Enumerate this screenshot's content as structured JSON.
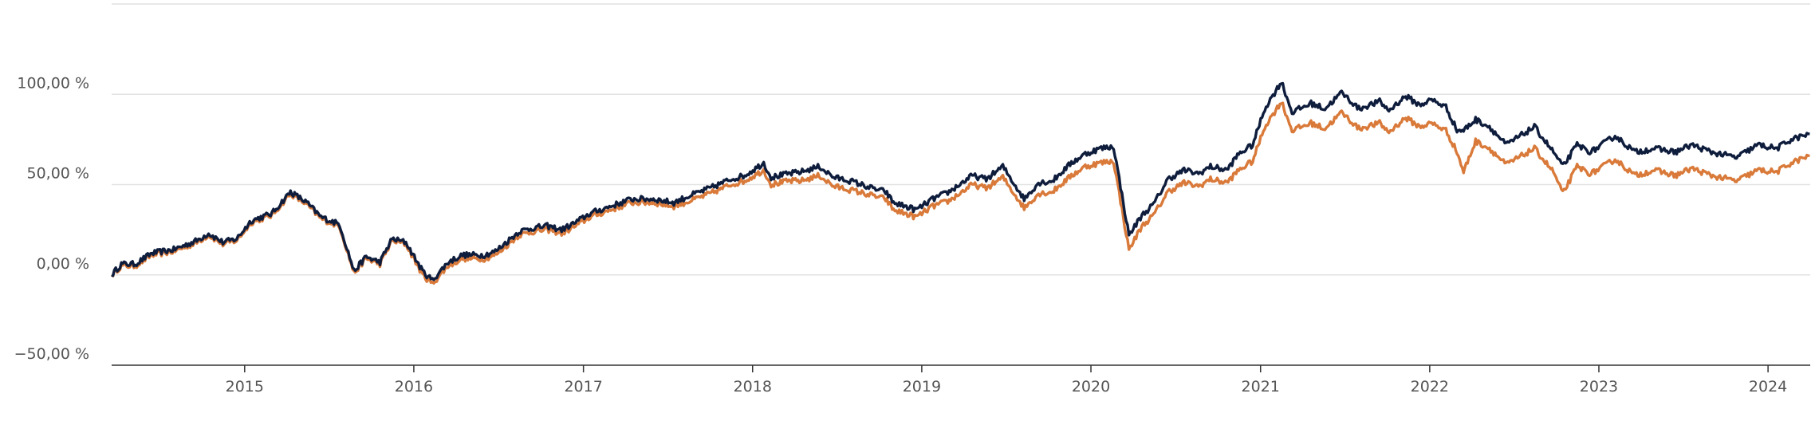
{
  "chart_data": {
    "type": "line",
    "title": "",
    "xlabel": "",
    "ylabel": "",
    "ylim": [
      -50,
      150
    ],
    "xlim": [
      "2014-03-20",
      "2024-04-01"
    ],
    "grid": true,
    "legend": "none",
    "y_ticks": [
      {
        "value": -50,
        "label": "−50,00 %"
      },
      {
        "value": 0,
        "label": "0,00 %"
      },
      {
        "value": 50,
        "label": "50,00 %"
      },
      {
        "value": 100,
        "label": "100,00 %"
      },
      {
        "value": 150,
        "label": ""
      }
    ],
    "x_ticks": [
      {
        "date": "2015-01-01",
        "label": "2015"
      },
      {
        "date": "2016-01-01",
        "label": "2016"
      },
      {
        "date": "2017-01-01",
        "label": "2017"
      },
      {
        "date": "2018-01-01",
        "label": "2018"
      },
      {
        "date": "2019-01-01",
        "label": "2019"
      },
      {
        "date": "2020-01-01",
        "label": "2020"
      },
      {
        "date": "2021-01-01",
        "label": "2021"
      },
      {
        "date": "2022-01-01",
        "label": "2022"
      },
      {
        "date": "2023-01-01",
        "label": "2023"
      },
      {
        "date": "2024-01-01",
        "label": "2024"
      }
    ],
    "series": [
      {
        "color": "#0f1d3d",
        "points": [
          [
            "2014-03-20",
            0
          ],
          [
            "2014-04-10",
            6
          ],
          [
            "2014-05-10",
            6
          ],
          [
            "2014-06-15",
            12
          ],
          [
            "2014-08-01",
            14
          ],
          [
            "2014-09-20",
            19
          ],
          [
            "2014-10-15",
            23
          ],
          [
            "2014-11-15",
            18
          ],
          [
            "2014-12-15",
            20
          ],
          [
            "2015-01-15",
            30
          ],
          [
            "2015-03-01",
            34
          ],
          [
            "2015-04-10",
            46
          ],
          [
            "2015-05-15",
            40
          ],
          [
            "2015-06-15",
            32
          ],
          [
            "2015-07-25",
            28
          ],
          [
            "2015-08-25",
            2
          ],
          [
            "2015-09-20",
            10
          ],
          [
            "2015-10-20",
            7
          ],
          [
            "2015-11-15",
            20
          ],
          [
            "2015-12-15",
            18
          ],
          [
            "2016-01-20",
            2
          ],
          [
            "2016-02-10",
            -3
          ],
          [
            "2016-03-15",
            7
          ],
          [
            "2016-04-15",
            11
          ],
          [
            "2016-06-01",
            11
          ],
          [
            "2016-06-25",
            13
          ],
          [
            "2016-08-15",
            24
          ],
          [
            "2016-09-15",
            26
          ],
          [
            "2016-10-15",
            27
          ],
          [
            "2016-11-15",
            25
          ],
          [
            "2016-12-15",
            29
          ],
          [
            "2017-01-15",
            34
          ],
          [
            "2017-03-01",
            38
          ],
          [
            "2017-04-15",
            42
          ],
          [
            "2017-06-01",
            42
          ],
          [
            "2017-07-15",
            40
          ],
          [
            "2017-08-20",
            44
          ],
          [
            "2017-10-01",
            48
          ],
          [
            "2017-11-15",
            53
          ],
          [
            "2017-12-15",
            55
          ],
          [
            "2018-01-25",
            62
          ],
          [
            "2018-02-10",
            54
          ],
          [
            "2018-03-20",
            56
          ],
          [
            "2018-04-15",
            57
          ],
          [
            "2018-05-25",
            60
          ],
          [
            "2018-06-25",
            54
          ],
          [
            "2018-08-01",
            52
          ],
          [
            "2018-09-15",
            48
          ],
          [
            "2018-10-15",
            46
          ],
          [
            "2018-11-01",
            40
          ],
          [
            "2018-12-20",
            36
          ],
          [
            "2019-01-25",
            42
          ],
          [
            "2019-03-01",
            46
          ],
          [
            "2019-04-20",
            55
          ],
          [
            "2019-05-20",
            53
          ],
          [
            "2019-06-25",
            60
          ],
          [
            "2019-08-10",
            42
          ],
          [
            "2019-09-10",
            51
          ],
          [
            "2019-10-10",
            52
          ],
          [
            "2019-11-20",
            62
          ],
          [
            "2019-12-20",
            67
          ],
          [
            "2020-01-20",
            70
          ],
          [
            "2020-02-19",
            71
          ],
          [
            "2020-03-23",
            22
          ],
          [
            "2020-04-20",
            33
          ],
          [
            "2020-05-15",
            39
          ],
          [
            "2020-06-15",
            53
          ],
          [
            "2020-07-20",
            58
          ],
          [
            "2020-08-20",
            56
          ],
          [
            "2020-09-15",
            60
          ],
          [
            "2020-10-20",
            58
          ],
          [
            "2020-11-15",
            67
          ],
          [
            "2020-12-15",
            72
          ],
          [
            "2021-01-10",
            92
          ],
          [
            "2021-02-15",
            107
          ],
          [
            "2021-03-10",
            90
          ],
          [
            "2021-04-20",
            95
          ],
          [
            "2021-05-20",
            92
          ],
          [
            "2021-06-25",
            101
          ],
          [
            "2021-08-01",
            92
          ],
          [
            "2021-09-15",
            96
          ],
          [
            "2021-10-05",
            91
          ],
          [
            "2021-11-10",
            99
          ],
          [
            "2021-12-10",
            94
          ],
          [
            "2022-01-05",
            97
          ],
          [
            "2022-02-05",
            93
          ],
          [
            "2022-03-01",
            80
          ],
          [
            "2022-03-15",
            80
          ],
          [
            "2022-04-10",
            86
          ],
          [
            "2022-05-10",
            82
          ],
          [
            "2022-06-15",
            72
          ],
          [
            "2022-08-15",
            82
          ],
          [
            "2022-09-25",
            68
          ],
          [
            "2022-10-15",
            60
          ],
          [
            "2022-11-15",
            72
          ],
          [
            "2022-12-15",
            68
          ],
          [
            "2023-02-05",
            77
          ],
          [
            "2023-03-20",
            68
          ],
          [
            "2023-05-01",
            70
          ],
          [
            "2023-06-15",
            68
          ],
          [
            "2023-07-20",
            72
          ],
          [
            "2023-09-01",
            68
          ],
          [
            "2023-10-25",
            65
          ],
          [
            "2023-12-10",
            72
          ],
          [
            "2024-01-20",
            70
          ],
          [
            "2024-02-20",
            75
          ],
          [
            "2024-03-31",
            78
          ]
        ]
      },
      {
        "color": "#d97a3a",
        "points": [
          [
            "2014-03-20",
            0
          ],
          [
            "2014-04-10",
            5
          ],
          [
            "2014-05-10",
            5
          ],
          [
            "2014-06-15",
            11
          ],
          [
            "2014-08-01",
            13
          ],
          [
            "2014-09-20",
            18
          ],
          [
            "2014-10-15",
            22
          ],
          [
            "2014-11-15",
            17
          ],
          [
            "2014-12-15",
            19
          ],
          [
            "2015-01-15",
            29
          ],
          [
            "2015-03-01",
            33
          ],
          [
            "2015-04-10",
            45
          ],
          [
            "2015-05-15",
            39
          ],
          [
            "2015-06-15",
            31
          ],
          [
            "2015-07-25",
            27
          ],
          [
            "2015-08-25",
            1
          ],
          [
            "2015-09-20",
            9
          ],
          [
            "2015-10-20",
            6
          ],
          [
            "2015-11-15",
            19
          ],
          [
            "2015-12-15",
            17
          ],
          [
            "2016-01-20",
            0
          ],
          [
            "2016-02-10",
            -5
          ],
          [
            "2016-03-15",
            5
          ],
          [
            "2016-04-15",
            9
          ],
          [
            "2016-06-01",
            9
          ],
          [
            "2016-06-25",
            11
          ],
          [
            "2016-08-15",
            22
          ],
          [
            "2016-09-15",
            24
          ],
          [
            "2016-10-15",
            25
          ],
          [
            "2016-11-15",
            23
          ],
          [
            "2016-12-15",
            27
          ],
          [
            "2017-01-15",
            32
          ],
          [
            "2017-03-01",
            36
          ],
          [
            "2017-04-15",
            40
          ],
          [
            "2017-06-01",
            40
          ],
          [
            "2017-07-15",
            38
          ],
          [
            "2017-08-20",
            41
          ],
          [
            "2017-10-01",
            45
          ],
          [
            "2017-11-15",
            50
          ],
          [
            "2017-12-15",
            52
          ],
          [
            "2018-01-25",
            58
          ],
          [
            "2018-02-10",
            50
          ],
          [
            "2018-03-20",
            52
          ],
          [
            "2018-04-15",
            52
          ],
          [
            "2018-05-25",
            55
          ],
          [
            "2018-06-25",
            49
          ],
          [
            "2018-08-01",
            47
          ],
          [
            "2018-09-15",
            44
          ],
          [
            "2018-10-15",
            42
          ],
          [
            "2018-11-01",
            36
          ],
          [
            "2018-12-20",
            32
          ],
          [
            "2019-01-25",
            38
          ],
          [
            "2019-03-01",
            41
          ],
          [
            "2019-04-20",
            50
          ],
          [
            "2019-05-20",
            48
          ],
          [
            "2019-06-25",
            54
          ],
          [
            "2019-08-10",
            37
          ],
          [
            "2019-09-10",
            45
          ],
          [
            "2019-10-10",
            46
          ],
          [
            "2019-11-20",
            55
          ],
          [
            "2019-12-20",
            60
          ],
          [
            "2020-01-20",
            62
          ],
          [
            "2020-02-19",
            63
          ],
          [
            "2020-03-23",
            14
          ],
          [
            "2020-04-20",
            27
          ],
          [
            "2020-05-15",
            33
          ],
          [
            "2020-06-15",
            46
          ],
          [
            "2020-07-20",
            51
          ],
          [
            "2020-08-20",
            49
          ],
          [
            "2020-09-15",
            53
          ],
          [
            "2020-10-20",
            51
          ],
          [
            "2020-11-15",
            58
          ],
          [
            "2020-12-15",
            63
          ],
          [
            "2021-01-10",
            82
          ],
          [
            "2021-02-15",
            96
          ],
          [
            "2021-03-10",
            80
          ],
          [
            "2021-04-20",
            84
          ],
          [
            "2021-05-20",
            81
          ],
          [
            "2021-06-25",
            90
          ],
          [
            "2021-08-01",
            81
          ],
          [
            "2021-09-15",
            84
          ],
          [
            "2021-10-05",
            79
          ],
          [
            "2021-11-10",
            87
          ],
          [
            "2021-12-10",
            82
          ],
          [
            "2022-01-05",
            84
          ],
          [
            "2022-02-05",
            80
          ],
          [
            "2022-03-01",
            68
          ],
          [
            "2022-03-15",
            57
          ],
          [
            "2022-04-10",
            74
          ],
          [
            "2022-05-10",
            70
          ],
          [
            "2022-06-15",
            61
          ],
          [
            "2022-08-15",
            70
          ],
          [
            "2022-09-25",
            57
          ],
          [
            "2022-10-15",
            45
          ],
          [
            "2022-11-15",
            60
          ],
          [
            "2022-12-15",
            56
          ],
          [
            "2023-02-05",
            64
          ],
          [
            "2023-03-20",
            55
          ],
          [
            "2023-05-01",
            58
          ],
          [
            "2023-06-15",
            55
          ],
          [
            "2023-07-20",
            59
          ],
          [
            "2023-09-01",
            55
          ],
          [
            "2023-10-25",
            52
          ],
          [
            "2023-12-10",
            58
          ],
          [
            "2024-01-20",
            57
          ],
          [
            "2024-02-20",
            62
          ],
          [
            "2024-03-31",
            66
          ]
        ]
      }
    ]
  }
}
